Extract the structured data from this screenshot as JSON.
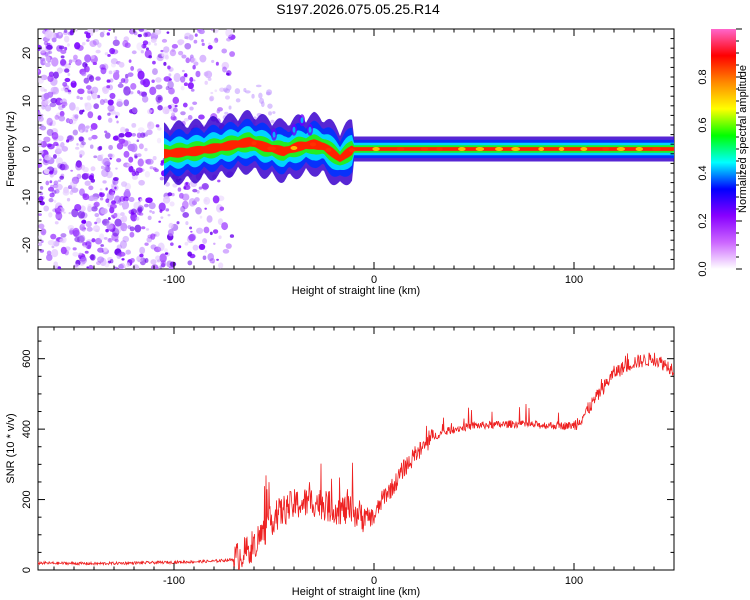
{
  "title": "S197.2026.075.05.25.R14",
  "chart_data": [
    {
      "type": "heatmap",
      "xlabel": "Height of straight line (km)",
      "ylabel": "Frequency (Hz)",
      "xlim": [
        -168,
        150
      ],
      "ylim": [
        -25,
        25
      ],
      "xticks": [
        -100,
        0,
        100
      ],
      "yticks": [
        -20,
        -10,
        0,
        10,
        20
      ],
      "colorbar": {
        "label": "Normalized spectral amplitude",
        "range": [
          0,
          1
        ],
        "ticks": [
          "0.0",
          "0.2",
          "0.4",
          "0.6",
          "0.8"
        ],
        "tick_values": [
          0,
          0.2,
          0.4,
          0.6,
          0.8
        ],
        "colors": [
          "#ffffff",
          "#cc66ff",
          "#8800ff",
          "#0000ff",
          "#00ffff",
          "#00ff00",
          "#ffff00",
          "#ff8800",
          "#ff0000",
          "#ff66cc"
        ]
      },
      "ridge": {
        "x": [
          -105,
          -90,
          -75,
          -62,
          -55,
          -45,
          -38,
          -30,
          -25,
          -20,
          -17,
          -14,
          -10,
          -5,
          0,
          10,
          20,
          40,
          60,
          80,
          100,
          120,
          150
        ],
        "y": [
          -1,
          -0.5,
          0.5,
          1.5,
          0.5,
          -0.5,
          0.5,
          1.0,
          0.5,
          -1.0,
          -2.0,
          -1.0,
          0,
          0,
          0,
          0,
          0,
          0,
          0,
          0,
          0,
          0,
          0
        ]
      },
      "noise_region_x": [
        -168,
        -70
      ]
    },
    {
      "type": "line",
      "xlabel": "Height of straight line (km)",
      "ylabel": "SNR (10 * v/v)",
      "xlim": [
        -168,
        150
      ],
      "ylim": [
        0,
        690
      ],
      "xticks": [
        -100,
        0,
        100
      ],
      "yticks": [
        0,
        200,
        400,
        600
      ],
      "color": "#ee2222",
      "series": [
        {
          "x": [
            -168,
            -140,
            -120,
            -100,
            -80,
            -70,
            -62,
            -55,
            -50,
            -45,
            -40,
            -35,
            -30,
            -25,
            -20,
            -15,
            -10,
            -5,
            0,
            5,
            10,
            15,
            20,
            25,
            30,
            40,
            50,
            60,
            70,
            80,
            90,
            100,
            105,
            110,
            115,
            120,
            130,
            140,
            150
          ],
          "y": [
            20,
            18,
            20,
            22,
            25,
            30,
            60,
            110,
            150,
            170,
            185,
            190,
            195,
            185,
            175,
            170,
            165,
            150,
            150,
            210,
            240,
            290,
            320,
            350,
            380,
            400,
            410,
            412,
            415,
            412,
            410,
            410,
            440,
            480,
            520,
            560,
            590,
            600,
            570
          ]
        }
      ]
    }
  ]
}
